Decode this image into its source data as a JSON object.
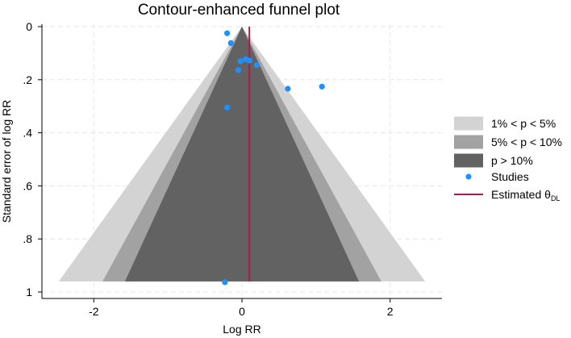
{
  "chart_data": {
    "type": "scatter",
    "title": "Contour-enhanced funnel plot",
    "xlabel": "Log RR",
    "ylabel": "Standard error of log RR",
    "xlim": [
      -2.7,
      2.7
    ],
    "ylim": [
      0,
      1
    ],
    "y_reversed": true,
    "grid": true,
    "legend_position": "right",
    "x_ticks": [
      {
        "value": -2,
        "label": "-2"
      },
      {
        "value": 0,
        "label": "0"
      },
      {
        "value": 2,
        "label": "2"
      }
    ],
    "y_ticks": [
      {
        "value": 0,
        "label": "0"
      },
      {
        "value": 0.2,
        "label": ".2"
      },
      {
        "value": 0.4,
        "label": ".4"
      },
      {
        "value": 0.6,
        "label": ".6"
      },
      {
        "value": 0.8,
        "label": ".8"
      },
      {
        "value": 1,
        "label": "1"
      }
    ],
    "estimate": 0.1,
    "contours": [
      {
        "name": "1% < p < 5%",
        "z": 2.576,
        "color": "#d3d3d3"
      },
      {
        "name": "5% < p < 10%",
        "z": 1.96,
        "color": "#a2a2a2"
      },
      {
        "name": "p > 10%",
        "z": 1.645,
        "color": "#626262"
      }
    ],
    "se_max": 0.96,
    "series": [
      {
        "name": "Studies",
        "color": "#1e90ff",
        "points": [
          {
            "x": -0.2,
            "y": 0.025
          },
          {
            "x": -0.15,
            "y": 0.062
          },
          {
            "x": 0.05,
            "y": 0.123
          },
          {
            "x": 0.1,
            "y": 0.128
          },
          {
            "x": -0.02,
            "y": 0.13
          },
          {
            "x": 0.2,
            "y": 0.145
          },
          {
            "x": -0.05,
            "y": 0.164
          },
          {
            "x": 0.62,
            "y": 0.234
          },
          {
            "x": 1.08,
            "y": 0.226
          },
          {
            "x": -0.2,
            "y": 0.305
          },
          {
            "x": -0.23,
            "y": 0.963
          }
        ]
      }
    ],
    "estimate_line": {
      "name": "Estimated θ",
      "subscript": "DL",
      "color": "#b0184c"
    }
  }
}
